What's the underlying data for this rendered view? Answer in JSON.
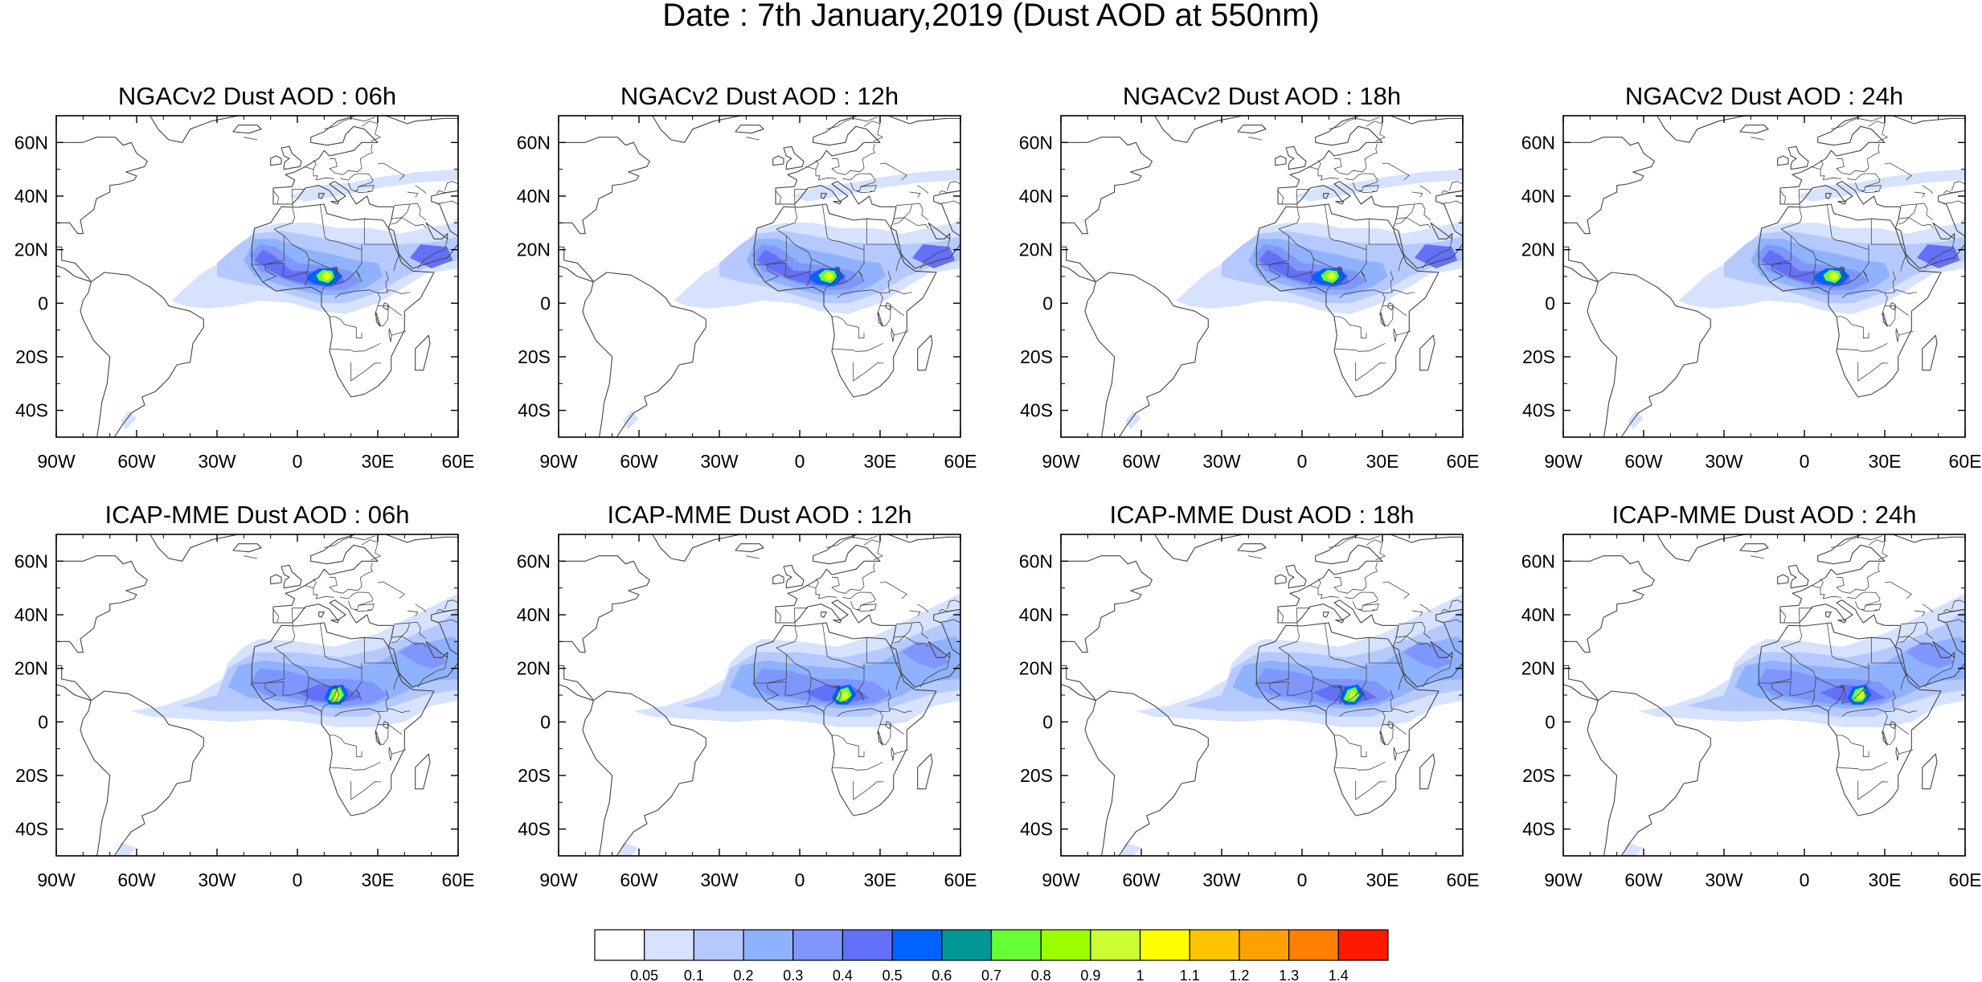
{
  "title": "Date : 7th January,2019 (Dust AOD at 550nm)",
  "panels": [
    {
      "title": "NGACv2 Dust AOD : 06h",
      "model": "ngac",
      "hour": 6
    },
    {
      "title": "NGACv2 Dust AOD : 12h",
      "model": "ngac",
      "hour": 12
    },
    {
      "title": "NGACv2 Dust AOD : 18h",
      "model": "ngac",
      "hour": 18
    },
    {
      "title": "NGACv2 Dust AOD : 24h",
      "model": "ngac",
      "hour": 24
    },
    {
      "title": "ICAP-MME Dust AOD : 06h",
      "model": "icap",
      "hour": 6
    },
    {
      "title": "ICAP-MME Dust AOD : 12h",
      "model": "icap",
      "hour": 12
    },
    {
      "title": "ICAP-MME Dust AOD : 18h",
      "model": "icap",
      "hour": 18
    },
    {
      "title": "ICAP-MME Dust AOD : 24h",
      "model": "icap",
      "hour": 24
    }
  ],
  "map_extent": {
    "lon": [
      -90,
      60
    ],
    "lat": [
      -50,
      70
    ]
  },
  "lon_ticks": [
    {
      "value": -90,
      "label": "90W"
    },
    {
      "value": -60,
      "label": "60W"
    },
    {
      "value": -30,
      "label": "30W"
    },
    {
      "value": 0,
      "label": "0"
    },
    {
      "value": 30,
      "label": "30E"
    },
    {
      "value": 60,
      "label": "60E"
    }
  ],
  "lat_ticks": [
    {
      "value": 60,
      "label": "60N"
    },
    {
      "value": 40,
      "label": "40N"
    },
    {
      "value": 20,
      "label": "20N"
    },
    {
      "value": 0,
      "label": "0"
    },
    {
      "value": -20,
      "label": "20S"
    },
    {
      "value": -40,
      "label": "40S"
    }
  ],
  "colorbar": {
    "colors": [
      "#ffffff",
      "#d6e2ff",
      "#b5c9ff",
      "#8fb2ff",
      "#7f96ff",
      "#6370f8",
      "#0063ff",
      "#009696",
      "#66ff33",
      "#9bff00",
      "#ccff33",
      "#ffff00",
      "#ffc400",
      "#ffa000",
      "#ff7f00",
      "#ff1900"
    ],
    "labels": [
      "0.05",
      "0.1",
      "0.2",
      "0.3",
      "0.4",
      "0.5",
      "0.6",
      "0.7",
      "0.8",
      "0.9",
      "1",
      "1.1",
      "1.2",
      "1.3",
      "1.4"
    ]
  }
}
